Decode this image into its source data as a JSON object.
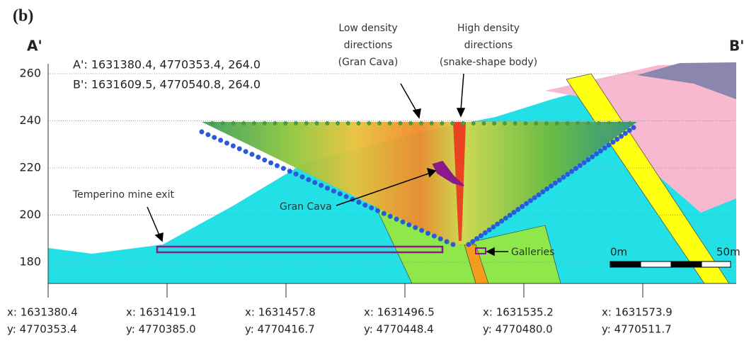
{
  "panel_label": "(b)",
  "section": {
    "start": "A'",
    "end": "B'"
  },
  "endpoints": [
    "A': 1631380.4, 4770353.4, 264.0",
    "B': 1631609.5, 4770540.8, 264.0"
  ],
  "annotations": {
    "low_density": [
      "Low density",
      "directions",
      "(Gran Cava)"
    ],
    "high_density": [
      "High density",
      "directions",
      "(snake-shape body)"
    ],
    "mine_exit": "Temperino mine exit",
    "gran_cava": "Gran Cava",
    "galleries": "Galleries"
  },
  "scale_bar": {
    "start": "0m",
    "end": "50m"
  },
  "y_axis": {
    "ticks": [
      260,
      240,
      220,
      200,
      180
    ]
  },
  "x_axis": {
    "ticks": [
      {
        "x": "x: 1631380.4",
        "y": "y: 4770353.4"
      },
      {
        "x": "x: 1631419.1",
        "y": "y: 4770385.0"
      },
      {
        "x": "x: 1631457.8",
        "y": "y: 4770416.7"
      },
      {
        "x": "x: 1631496.5",
        "y": "y: 4770448.4"
      },
      {
        "x": "x: 1631535.2",
        "y": "y: 4770480.0"
      },
      {
        "x": "x: 1631573.9",
        "y": "y: 4770511.7"
      }
    ]
  }
}
